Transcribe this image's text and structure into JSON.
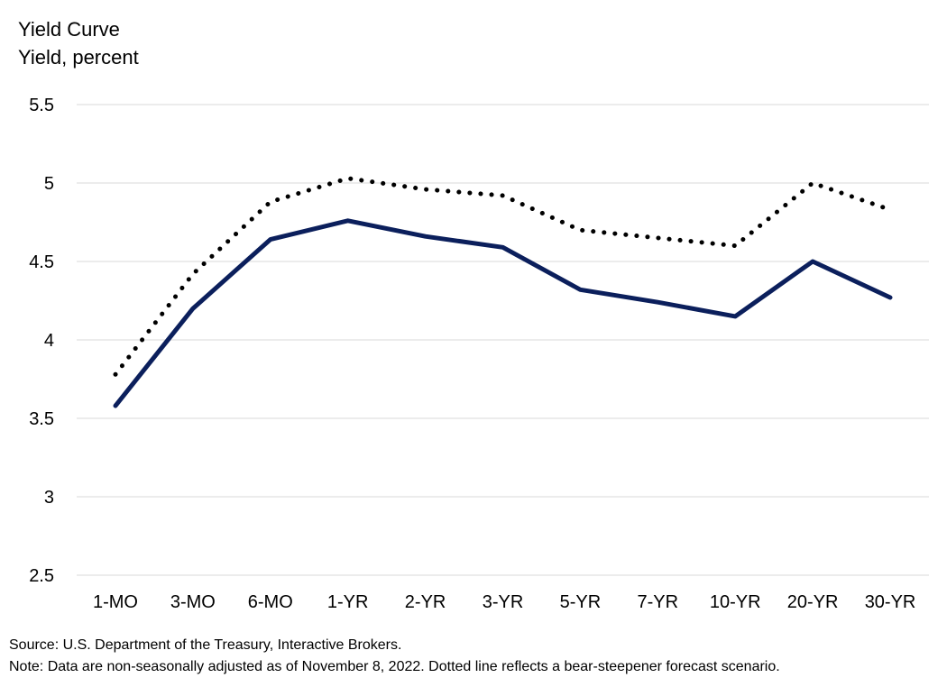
{
  "chart_data": {
    "type": "line",
    "title": "Yield Curve",
    "ylabel": "Yield, percent",
    "xlabel": "",
    "categories": [
      "1-MO",
      "3-MO",
      "6-MO",
      "1-YR",
      "2-YR",
      "3-YR",
      "5-YR",
      "7-YR",
      "10-YR",
      "20-YR",
      "30-YR"
    ],
    "ylim": [
      2.5,
      5.5
    ],
    "yticks": [
      5.5,
      5,
      4.5,
      4,
      3.5,
      3,
      2.5
    ],
    "grid": true,
    "legend": "none",
    "series": [
      {
        "style": "solid",
        "color": "#0b1f5c",
        "values": [
          3.58,
          4.2,
          4.64,
          4.76,
          4.66,
          4.59,
          4.32,
          4.24,
          4.15,
          4.5,
          4.27
        ]
      },
      {
        "style": "dotted",
        "color": "#000000",
        "values": [
          3.78,
          4.42,
          4.88,
          5.03,
          4.96,
          4.92,
          4.7,
          4.65,
          4.6,
          5.0,
          4.83
        ]
      }
    ]
  },
  "notes": {
    "source": "Source: U.S. Department of the Treasury, Interactive Brokers.",
    "note": "Note: Data are non-seasonally adjusted as of November 8, 2022. Dotted line reflects a bear-steepener forecast scenario."
  }
}
